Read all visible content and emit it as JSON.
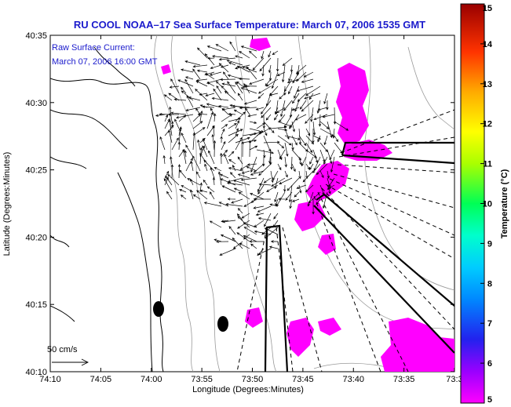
{
  "title": "RU COOL   NOAA–17  Sea Surface Temperature:  March 07, 2006 1535 GMT",
  "current_note_line1": "Raw Surface Current:",
  "current_note_line2": "March 07, 2006 16:00 GMT",
  "scale_label": "50 cm/s",
  "colors": {
    "title_blue": "#1a1acc",
    "sst_patch": "#ff00ff",
    "land_line": "#000000",
    "bathymetry": "#999999"
  },
  "chart_data": {
    "type": "map",
    "xlabel": "Longitude (Degrees:Minutes)",
    "ylabel": "Latitude (Degrees:Minutes)",
    "x_ticks": [
      "74:10",
      "74:05",
      "74:00",
      "73:55",
      "73:50",
      "73:45",
      "73:40",
      "73:35",
      "73:3"
    ],
    "y_ticks": [
      "40:10",
      "40:15",
      "40:20",
      "40:25",
      "40:30",
      "40:35"
    ],
    "colorbar": {
      "label": "Temperature (°C)",
      "range": [
        5,
        15
      ],
      "ticks": [
        "5",
        "6",
        "7",
        "8",
        "9",
        "10",
        "11",
        "12",
        "13",
        "14",
        "15"
      ]
    }
  }
}
